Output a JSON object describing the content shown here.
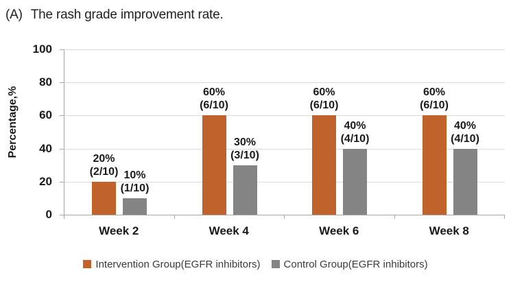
{
  "title": {
    "prefix": "(A)",
    "text": "The rash grade improvement rate."
  },
  "colors": {
    "intervention": "#C0622C",
    "control": "#848484",
    "grid": "#D9D9D9",
    "axis": "#A6A6A6",
    "text": "#1a1a1a"
  },
  "chart_data": {
    "type": "bar",
    "title": "(A) The rash grade improvement rate.",
    "categories": [
      "Week 2",
      "Week 4",
      "Week 6",
      "Week 8"
    ],
    "series": [
      {
        "name": "Intervention Group(EGFR inhibitors)",
        "color_key": "intervention",
        "values": [
          20,
          60,
          60,
          60
        ],
        "labels": [
          [
            "20%",
            "(2/10)"
          ],
          [
            "60%",
            "(6/10)"
          ],
          [
            "60%",
            "(6/10)"
          ],
          [
            "60%",
            "(6/10)"
          ]
        ]
      },
      {
        "name": "Control Group(EGFR inhibitors)",
        "color_key": "control",
        "values": [
          10,
          30,
          40,
          40
        ],
        "labels": [
          [
            "10%",
            "(1/10)"
          ],
          [
            "30%",
            "(3/10)"
          ],
          [
            "40%",
            "(4/10)"
          ],
          [
            "40%",
            "(4/10)"
          ]
        ]
      }
    ],
    "ylabel": "Percentage,%",
    "xlabel": "",
    "yticks": [
      0,
      20,
      40,
      60,
      80,
      100
    ],
    "ylim": [
      0,
      100
    ],
    "grid": true,
    "legend_position": "bottom"
  }
}
